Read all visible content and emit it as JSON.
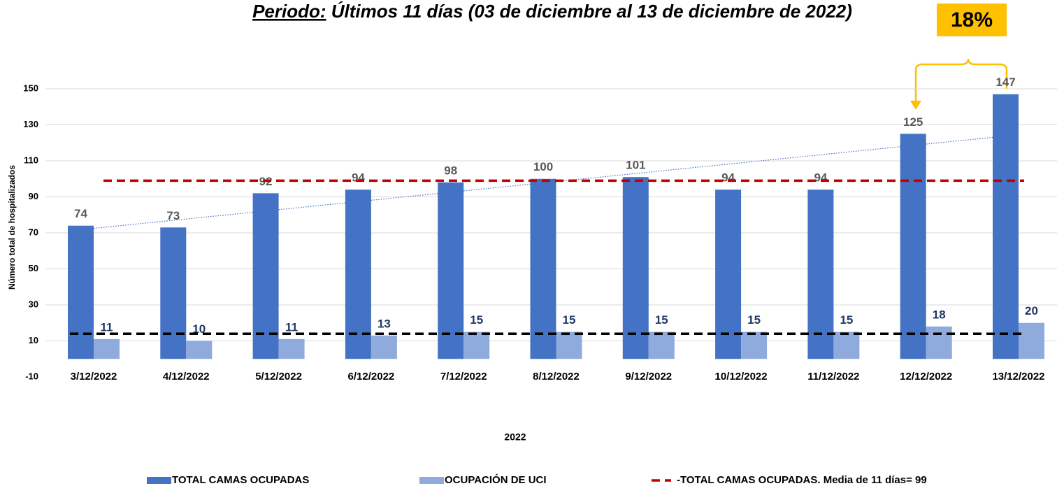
{
  "chart_data": {
    "type": "bar",
    "title": "Periodo: Últimos 11 días (03 de diciembre al 13  de diciembre de 2022)",
    "annotation": "18%",
    "xlabel": "2022",
    "ylabel": "Número total de hospitalizados",
    "categories": [
      "3/12/2022",
      "4/12/2022",
      "5/12/2022",
      "6/12/2022",
      "7/12/2022",
      "8/12/2022",
      "9/12/2022",
      "10/12/2022",
      "11/12/2022",
      "12/12/2022",
      "13/12/2022"
    ],
    "series": [
      {
        "name": "TOTAL CAMAS OCUPADAS",
        "color": "#4472c4",
        "values": [
          74,
          73,
          92,
          94,
          98,
          100,
          101,
          94,
          94,
          125,
          147
        ]
      },
      {
        "name": "OCUPACIÓN DE UCI",
        "color": "#8faadc",
        "values": [
          11,
          10,
          11,
          13,
          15,
          15,
          15,
          15,
          15,
          18,
          20
        ]
      }
    ],
    "reference_lines": [
      {
        "name": "-TOTAL CAMAS OCUPADAS. Media de 11 días= 99",
        "value": 99,
        "color": "#c00000"
      },
      {
        "value": 14,
        "color": "#000000"
      }
    ],
    "trendline": {
      "values": [
        72.5,
        124.5
      ],
      "color": "#4472c4"
    },
    "ylim": [
      -10,
      150
    ],
    "yticks": [
      -10,
      10,
      30,
      50,
      70,
      90,
      110,
      130,
      150
    ],
    "grid": true
  }
}
